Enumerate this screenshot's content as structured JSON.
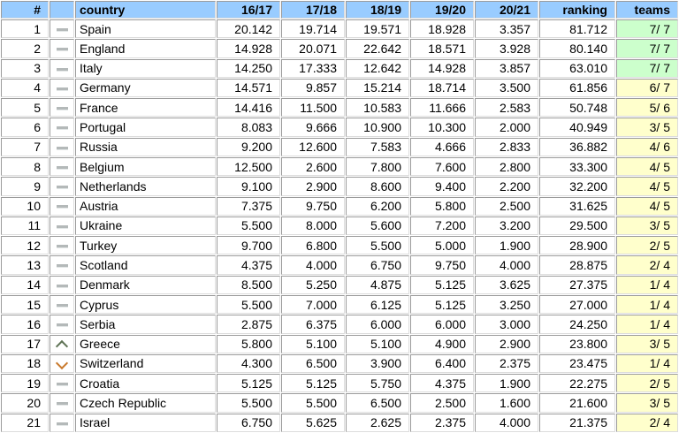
{
  "colors": {
    "header_bg": "#99ccff",
    "teams_green": "#ccffcc",
    "teams_yellow": "#ffffcc",
    "border_dark": "#9b9b9b",
    "border_light": "#dcdcdc",
    "dash_gray": "#b4b9b9",
    "arrow_up": "#5f7355",
    "arrow_down": "#c97a2e"
  },
  "table": {
    "headers": [
      "#",
      "",
      "country",
      "16/17",
      "17/18",
      "18/19",
      "19/20",
      "20/21",
      "ranking",
      "teams"
    ],
    "rows": [
      {
        "rank": "1",
        "movement": "same",
        "country": "Spain",
        "seasons": [
          "20.142",
          "19.714",
          "19.571",
          "18.928",
          "3.357"
        ],
        "ranking": "81.712",
        "teams": "7/ 7",
        "teams_highlight": "green"
      },
      {
        "rank": "2",
        "movement": "same",
        "country": "England",
        "seasons": [
          "14.928",
          "20.071",
          "22.642",
          "18.571",
          "3.928"
        ],
        "ranking": "80.140",
        "teams": "7/ 7",
        "teams_highlight": "green"
      },
      {
        "rank": "3",
        "movement": "same",
        "country": "Italy",
        "seasons": [
          "14.250",
          "17.333",
          "12.642",
          "14.928",
          "3.857"
        ],
        "ranking": "63.010",
        "teams": "7/ 7",
        "teams_highlight": "green"
      },
      {
        "rank": "4",
        "movement": "same",
        "country": "Germany",
        "seasons": [
          "14.571",
          "9.857",
          "15.214",
          "18.714",
          "3.500"
        ],
        "ranking": "61.856",
        "teams": "6/ 7",
        "teams_highlight": "yellow"
      },
      {
        "rank": "5",
        "movement": "same",
        "country": "France",
        "seasons": [
          "14.416",
          "11.500",
          "10.583",
          "11.666",
          "2.583"
        ],
        "ranking": "50.748",
        "teams": "5/ 6",
        "teams_highlight": "yellow"
      },
      {
        "rank": "6",
        "movement": "same",
        "country": "Portugal",
        "seasons": [
          "8.083",
          "9.666",
          "10.900",
          "10.300",
          "2.000"
        ],
        "ranking": "40.949",
        "teams": "3/ 5",
        "teams_highlight": "yellow"
      },
      {
        "rank": "7",
        "movement": "same",
        "country": "Russia",
        "seasons": [
          "9.200",
          "12.600",
          "7.583",
          "4.666",
          "2.833"
        ],
        "ranking": "36.882",
        "teams": "4/ 6",
        "teams_highlight": "yellow"
      },
      {
        "rank": "8",
        "movement": "same",
        "country": "Belgium",
        "seasons": [
          "12.500",
          "2.600",
          "7.800",
          "7.600",
          "2.800"
        ],
        "ranking": "33.300",
        "teams": "4/ 5",
        "teams_highlight": "yellow"
      },
      {
        "rank": "9",
        "movement": "same",
        "country": "Netherlands",
        "seasons": [
          "9.100",
          "2.900",
          "8.600",
          "9.400",
          "2.200"
        ],
        "ranking": "32.200",
        "teams": "4/ 5",
        "teams_highlight": "yellow"
      },
      {
        "rank": "10",
        "movement": "same",
        "country": "Austria",
        "seasons": [
          "7.375",
          "9.750",
          "6.200",
          "5.800",
          "2.500"
        ],
        "ranking": "31.625",
        "teams": "4/ 5",
        "teams_highlight": "yellow"
      },
      {
        "rank": "11",
        "movement": "same",
        "country": "Ukraine",
        "seasons": [
          "5.500",
          "8.000",
          "5.600",
          "7.200",
          "3.200"
        ],
        "ranking": "29.500",
        "teams": "3/ 5",
        "teams_highlight": "yellow"
      },
      {
        "rank": "12",
        "movement": "same",
        "country": "Turkey",
        "seasons": [
          "9.700",
          "6.800",
          "5.500",
          "5.000",
          "1.900"
        ],
        "ranking": "28.900",
        "teams": "2/ 5",
        "teams_highlight": "yellow"
      },
      {
        "rank": "13",
        "movement": "same",
        "country": "Scotland",
        "seasons": [
          "4.375",
          "4.000",
          "6.750",
          "9.750",
          "4.000"
        ],
        "ranking": "28.875",
        "teams": "2/ 4",
        "teams_highlight": "yellow"
      },
      {
        "rank": "14",
        "movement": "same",
        "country": "Denmark",
        "seasons": [
          "8.500",
          "5.250",
          "4.875",
          "5.125",
          "3.625"
        ],
        "ranking": "27.375",
        "teams": "1/ 4",
        "teams_highlight": "yellow"
      },
      {
        "rank": "15",
        "movement": "same",
        "country": "Cyprus",
        "seasons": [
          "5.500",
          "7.000",
          "6.125",
          "5.125",
          "3.250"
        ],
        "ranking": "27.000",
        "teams": "1/ 4",
        "teams_highlight": "yellow"
      },
      {
        "rank": "16",
        "movement": "same",
        "country": "Serbia",
        "seasons": [
          "2.875",
          "6.375",
          "6.000",
          "6.000",
          "3.000"
        ],
        "ranking": "24.250",
        "teams": "1/ 4",
        "teams_highlight": "yellow"
      },
      {
        "rank": "17",
        "movement": "up",
        "country": "Greece",
        "seasons": [
          "5.800",
          "5.100",
          "5.100",
          "4.900",
          "2.900"
        ],
        "ranking": "23.800",
        "teams": "3/ 5",
        "teams_highlight": "yellow"
      },
      {
        "rank": "18",
        "movement": "down",
        "country": "Switzerland",
        "seasons": [
          "4.300",
          "6.500",
          "3.900",
          "6.400",
          "2.375"
        ],
        "ranking": "23.475",
        "teams": "1/ 4",
        "teams_highlight": "yellow"
      },
      {
        "rank": "19",
        "movement": "same",
        "country": "Croatia",
        "seasons": [
          "5.125",
          "5.125",
          "5.750",
          "4.375",
          "1.900"
        ],
        "ranking": "22.275",
        "teams": "2/ 5",
        "teams_highlight": "yellow"
      },
      {
        "rank": "20",
        "movement": "same",
        "country": "Czech Republic",
        "seasons": [
          "5.500",
          "5.500",
          "6.500",
          "2.500",
          "1.600"
        ],
        "ranking": "21.600",
        "teams": "3/ 5",
        "teams_highlight": "yellow"
      },
      {
        "rank": "21",
        "movement": "same",
        "country": "Israel",
        "seasons": [
          "6.750",
          "5.625",
          "2.625",
          "2.375",
          "4.000"
        ],
        "ranking": "21.375",
        "teams": "2/ 4",
        "teams_highlight": "yellow"
      }
    ]
  }
}
